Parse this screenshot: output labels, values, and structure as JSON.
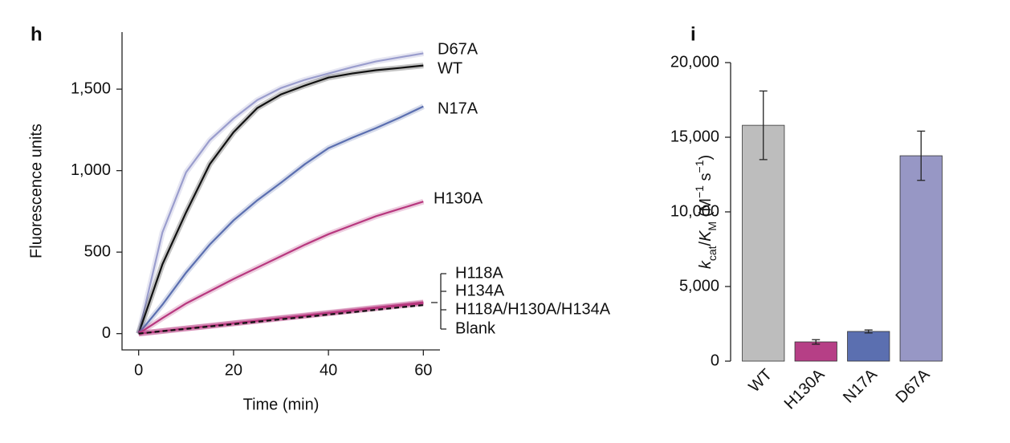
{
  "chart_data": [
    {
      "type": "line",
      "panel": "h",
      "xlabel": "Time (min)",
      "ylabel": "Fluorescence units",
      "x": [
        0,
        5,
        10,
        15,
        20,
        25,
        30,
        35,
        40,
        45,
        50,
        55,
        60
      ],
      "xlim": [
        -3.5,
        63.5
      ],
      "xticks": [
        0,
        20,
        40,
        60
      ],
      "ylim": [
        -100,
        1850
      ],
      "yticks": [
        0,
        500,
        {
          "value": 1000,
          "label": "1,000"
        },
        {
          "value": 1500,
          "label": "1,500"
        }
      ],
      "series": [
        {
          "name": "D67A",
          "color": "#9a9dcd",
          "values": [
            0,
            620,
            990,
            1187,
            1320,
            1433,
            1507,
            1557,
            1596,
            1635,
            1670,
            1695,
            1720
          ]
        },
        {
          "name": "WT",
          "color": "#111111",
          "values": [
            0,
            424,
            744,
            1040,
            1236,
            1384,
            1468,
            1522,
            1571,
            1596,
            1616,
            1630,
            1645
          ]
        },
        {
          "name": "N17A",
          "color": "#5b6fb0",
          "values": [
            0,
            177,
            374,
            547,
            695,
            818,
            926,
            1039,
            1138,
            1202,
            1261,
            1325,
            1394
          ]
        },
        {
          "name": "H130A",
          "color": "#b8387f",
          "values": [
            0,
            95,
            185,
            260,
            335,
            405,
            475,
            545,
            610,
            665,
            720,
            765,
            810
          ]
        },
        {
          "name": "H118A",
          "color": "#b8387f",
          "values": [
            0,
            16,
            32,
            48,
            64,
            80,
            96,
            112,
            128,
            144,
            160,
            176,
            192
          ]
        },
        {
          "name": "H134A",
          "color": "#b8387f",
          "values": [
            0,
            16,
            32,
            47,
            63,
            79,
            95,
            110,
            126,
            142,
            158,
            173,
            189
          ]
        },
        {
          "name": "H118A/H130A/H134A",
          "color": "#b8387f",
          "values": [
            0,
            15,
            31,
            46,
            62,
            77,
            93,
            108,
            124,
            139,
            155,
            170,
            186
          ]
        },
        {
          "name": "Blank",
          "color": "#888888",
          "line_color": "#111111",
          "linestyle": "dashed",
          "values": [
            0,
            15,
            29,
            44,
            58,
            73,
            88,
            102,
            117,
            131,
            146,
            161,
            175
          ]
        }
      ]
    },
    {
      "type": "bar",
      "panel": "i",
      "ylabel": [
        "k",
        "cat",
        "/",
        "K",
        "M",
        " (M",
        "−1",
        " s",
        "−1",
        ")"
      ],
      "categories": [
        "WT",
        "H130A",
        "N17A",
        "D67A"
      ],
      "category_colors": [
        "#111111",
        "#b63f86",
        "#5b6fb0",
        "#9a9dcd"
      ],
      "colors": [
        "#bdbdbd",
        "#b63f86",
        "#5b6fb0",
        "#9797c5"
      ],
      "values": [
        15800,
        1290,
        1990,
        13760
      ],
      "errors": [
        2300,
        150,
        100,
        1650
      ],
      "ylim": [
        0,
        20000
      ],
      "yticks": [
        0,
        {
          "value": 5000,
          "label": "5,000"
        },
        {
          "value": 10000,
          "label": "10,000"
        },
        {
          "value": 15000,
          "label": "15,000"
        },
        {
          "value": 20000,
          "label": "20,000"
        }
      ]
    }
  ]
}
